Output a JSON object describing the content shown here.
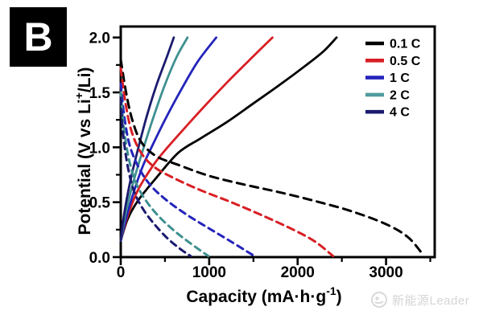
{
  "panel": {
    "label": "B"
  },
  "watermark": {
    "text": "新能源Leader"
  },
  "chart_data": {
    "type": "line",
    "title": "",
    "xlabel": {
      "pre": "Capacity (mA·h·g",
      "sup": "-1",
      "post": ")"
    },
    "ylabel": {
      "pre": "Potential (V vs Li",
      "sup": "+",
      "post": "/Li)"
    },
    "xlim": [
      0,
      3550
    ],
    "ylim": [
      0,
      2.1
    ],
    "grid": false,
    "legend_position": "top-right-inside",
    "x_ticks": [
      {
        "v": 0,
        "label": "0"
      },
      {
        "v": 1000,
        "label": "1000"
      },
      {
        "v": 2000,
        "label": "2000"
      },
      {
        "v": 3000,
        "label": "3000"
      }
    ],
    "y_ticks": [
      {
        "v": 0.0,
        "label": "0.0"
      },
      {
        "v": 0.5,
        "label": "0.5"
      },
      {
        "v": 1.0,
        "label": "1.0"
      },
      {
        "v": 1.5,
        "label": "1.5"
      },
      {
        "v": 2.0,
        "label": "2.0"
      }
    ],
    "x_minor_ticks": [
      500,
      1500,
      2500,
      3500
    ],
    "y_minor_ticks": [
      0.25,
      0.75,
      1.25,
      1.75
    ],
    "legend": [
      {
        "label": "0.1 C",
        "color": "#000000"
      },
      {
        "label": "0.5 C",
        "color": "#d81f24"
      },
      {
        "label": "1 C",
        "color": "#2424bb"
      },
      {
        "label": "2 C",
        "color": "#4f9a9e"
      },
      {
        "label": "4 C",
        "color": "#1b1b6f"
      }
    ],
    "series": [
      {
        "name": "0.1 C charge",
        "rate": "0.1 C",
        "branch": "charge",
        "color": "#000000",
        "dash": null,
        "points": [
          [
            0,
            0.15
          ],
          [
            80,
            0.35
          ],
          [
            200,
            0.52
          ],
          [
            400,
            0.72
          ],
          [
            650,
            0.95
          ],
          [
            900,
            1.08
          ],
          [
            1200,
            1.23
          ],
          [
            1500,
            1.4
          ],
          [
            1800,
            1.57
          ],
          [
            2100,
            1.75
          ],
          [
            2300,
            1.88
          ],
          [
            2440,
            2.0
          ]
        ]
      },
      {
        "name": "0.5 C charge",
        "rate": "0.5 C",
        "branch": "charge",
        "color": "#d81f24",
        "dash": null,
        "points": [
          [
            0,
            0.15
          ],
          [
            80,
            0.38
          ],
          [
            200,
            0.62
          ],
          [
            380,
            0.85
          ],
          [
            530,
            1.0
          ],
          [
            750,
            1.2
          ],
          [
            1000,
            1.42
          ],
          [
            1250,
            1.63
          ],
          [
            1500,
            1.83
          ],
          [
            1715,
            2.0
          ]
        ]
      },
      {
        "name": "1 C charge",
        "rate": "1 C",
        "branch": "charge",
        "color": "#2424bb",
        "dash": null,
        "points": [
          [
            0,
            0.15
          ],
          [
            60,
            0.35
          ],
          [
            150,
            0.6
          ],
          [
            250,
            0.83
          ],
          [
            360,
            1.02
          ],
          [
            500,
            1.25
          ],
          [
            680,
            1.52
          ],
          [
            870,
            1.78
          ],
          [
            1080,
            2.0
          ]
        ]
      },
      {
        "name": "2 C charge",
        "rate": "2 C",
        "branch": "charge",
        "color": "#3f9090",
        "dash": null,
        "points": [
          [
            0,
            0.15
          ],
          [
            50,
            0.38
          ],
          [
            130,
            0.65
          ],
          [
            240,
            0.95
          ],
          [
            360,
            1.25
          ],
          [
            490,
            1.55
          ],
          [
            630,
            1.82
          ],
          [
            755,
            2.0
          ]
        ]
      },
      {
        "name": "4 C charge",
        "rate": "4 C",
        "branch": "charge",
        "color": "#1b1b6f",
        "dash": null,
        "points": [
          [
            0,
            0.15
          ],
          [
            40,
            0.4
          ],
          [
            110,
            0.7
          ],
          [
            200,
            1.0
          ],
          [
            300,
            1.3
          ],
          [
            410,
            1.58
          ],
          [
            520,
            1.82
          ],
          [
            600,
            2.0
          ]
        ]
      },
      {
        "name": "0.1 C discharge",
        "rate": "0.1 C",
        "branch": "discharge",
        "color": "#000000",
        "dash": [
          10,
          7
        ],
        "points": [
          [
            0,
            1.8
          ],
          [
            60,
            1.5
          ],
          [
            130,
            1.25
          ],
          [
            230,
            1.05
          ],
          [
            400,
            0.92
          ],
          [
            650,
            0.84
          ],
          [
            1000,
            0.74
          ],
          [
            1400,
            0.66
          ],
          [
            1800,
            0.59
          ],
          [
            2200,
            0.51
          ],
          [
            2600,
            0.42
          ],
          [
            3000,
            0.3
          ],
          [
            3250,
            0.18
          ],
          [
            3420,
            0.02
          ]
        ]
      },
      {
        "name": "0.5 C discharge",
        "rate": "0.5 C",
        "branch": "discharge",
        "color": "#d81f24",
        "dash": [
          9,
          6
        ],
        "points": [
          [
            0,
            1.72
          ],
          [
            50,
            1.42
          ],
          [
            120,
            1.15
          ],
          [
            230,
            0.95
          ],
          [
            380,
            0.82
          ],
          [
            600,
            0.72
          ],
          [
            900,
            0.61
          ],
          [
            1250,
            0.5
          ],
          [
            1600,
            0.38
          ],
          [
            1950,
            0.25
          ],
          [
            2200,
            0.14
          ],
          [
            2400,
            0.01
          ]
        ]
      },
      {
        "name": "1 C discharge",
        "rate": "1 C",
        "branch": "discharge",
        "color": "#2424bb",
        "dash": [
          8,
          6
        ],
        "points": [
          [
            0,
            1.58
          ],
          [
            40,
            1.28
          ],
          [
            100,
            1.02
          ],
          [
            200,
            0.82
          ],
          [
            330,
            0.66
          ],
          [
            500,
            0.53
          ],
          [
            720,
            0.4
          ],
          [
            980,
            0.27
          ],
          [
            1250,
            0.14
          ],
          [
            1510,
            0.01
          ]
        ]
      },
      {
        "name": "2 C discharge",
        "rate": "2 C",
        "branch": "discharge",
        "color": "#3f9090",
        "dash": [
          8,
          6
        ],
        "points": [
          [
            0,
            1.5
          ],
          [
            35,
            1.18
          ],
          [
            90,
            0.9
          ],
          [
            170,
            0.68
          ],
          [
            280,
            0.52
          ],
          [
            420,
            0.38
          ],
          [
            590,
            0.25
          ],
          [
            780,
            0.13
          ],
          [
            990,
            0.01
          ]
        ]
      },
      {
        "name": "4 C discharge",
        "rate": "4 C",
        "branch": "discharge",
        "color": "#1b1b6f",
        "dash": [
          8,
          6
        ],
        "points": [
          [
            0,
            1.45
          ],
          [
            30,
            1.1
          ],
          [
            80,
            0.82
          ],
          [
            150,
            0.6
          ],
          [
            250,
            0.44
          ],
          [
            380,
            0.3
          ],
          [
            530,
            0.17
          ],
          [
            680,
            0.07
          ],
          [
            790,
            0.01
          ]
        ]
      }
    ]
  }
}
